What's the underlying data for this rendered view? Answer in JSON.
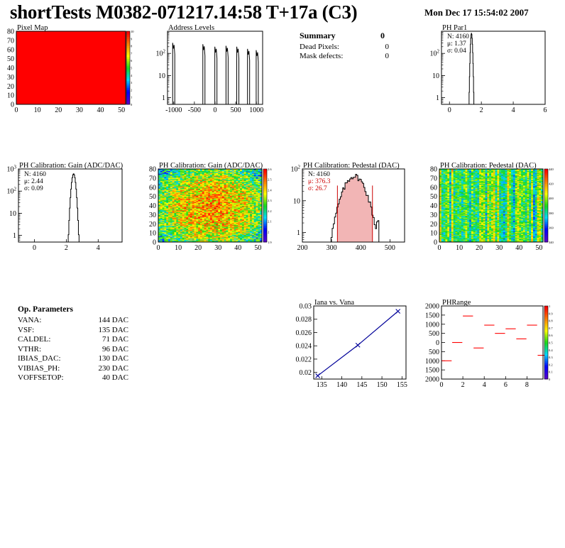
{
  "header": {
    "title": "shortTests M0382-071217.14:58 T+17a (C3)",
    "date": "Mon Dec 17 15:54:02 2007"
  },
  "summary": {
    "heading": "Summary",
    "heading_value": "0",
    "rows": [
      {
        "label": "Dead Pixels:",
        "value": "0"
      },
      {
        "label": "Mask defects:",
        "value": "0"
      }
    ]
  },
  "params": {
    "heading": "Op. Parameters",
    "rows": [
      {
        "name": "VANA:",
        "value": "144 DAC"
      },
      {
        "name": "VSF:",
        "value": "135 DAC"
      },
      {
        "name": "CALDEL:",
        "value": "71 DAC"
      },
      {
        "name": "VTHR:",
        "value": "96 DAC"
      },
      {
        "name": "IBIAS_DAC:",
        "value": "130 DAC"
      },
      {
        "name": "VIBIAS_PH:",
        "value": "230 DAC"
      },
      {
        "name": "VOFFSETOP:",
        "value": "40 DAC"
      }
    ]
  },
  "colors": {
    "red": "#ff0000",
    "navy": "#000099",
    "stats_red": "#cc0000"
  },
  "chart_data": [
    {
      "id": "pixel-map",
      "type": "heatmap",
      "title": "Pixel Map",
      "xlim": [
        0,
        52
      ],
      "ylim": [
        0,
        80
      ],
      "xticks": [
        0,
        10,
        20,
        30,
        40,
        50
      ],
      "yticks": [
        0,
        10,
        20,
        30,
        40,
        50,
        60,
        70,
        80
      ],
      "zlim": [
        0,
        10
      ],
      "zticks": [
        "0",
        "1",
        "2",
        "3",
        "4",
        "5",
        "6",
        "7",
        "8",
        "9",
        "10"
      ],
      "uniform_value": 10
    },
    {
      "id": "address-levels",
      "type": "line",
      "title": "Address Levels",
      "xlim": [
        -1150,
        1150
      ],
      "ylog": true,
      "ylim": [
        0.5,
        1000
      ],
      "xticks": [
        -1000,
        -500,
        0,
        500,
        1000
      ],
      "yticks": [
        1,
        10,
        100
      ],
      "ytick_labels": [
        "1",
        "10",
        "10^2"
      ],
      "peaks": [
        {
          "x": -1000,
          "y": 300
        },
        {
          "x": -270,
          "y": 260
        },
        {
          "x": 20,
          "y": 200
        },
        {
          "x": 290,
          "y": 220
        },
        {
          "x": 550,
          "y": 200
        },
        {
          "x": 810,
          "y": 160
        },
        {
          "x": 1020,
          "y": 140
        }
      ]
    },
    {
      "id": "ph-par1",
      "type": "line",
      "title": "PH Par1",
      "xlim": [
        -0.5,
        6
      ],
      "ylog": true,
      "ylim": [
        0.5,
        1000
      ],
      "xticks": [
        0,
        2,
        4,
        6
      ],
      "yticks": [
        1,
        10,
        100
      ],
      "ytick_labels": [
        "1",
        "10",
        "10^2"
      ],
      "stats": [
        "N: 4160",
        "μ: 1.37",
        "σ: 0.04"
      ],
      "mean": 1.37,
      "sigma": 0.04,
      "peak": 800
    },
    {
      "id": "ph-gain-hist",
      "type": "line",
      "title": "PH Calibration: Gain (ADC/DAC)",
      "xlim": [
        -1,
        5.5
      ],
      "ylog": true,
      "ylim": [
        0.5,
        1000
      ],
      "xticks": [
        0,
        2,
        4
      ],
      "yticks": [
        1,
        10,
        100,
        1000
      ],
      "ytick_labels": [
        "1",
        "10",
        "10^2",
        "10^3"
      ],
      "stats": [
        "N: 4160",
        "μ: 2.44",
        "σ: 0.09"
      ],
      "mean": 2.44,
      "sigma": 0.09,
      "peak": 600
    },
    {
      "id": "ph-gain-map",
      "type": "heatmap",
      "title": "PH Calibration: Gain (ADC/DAC)",
      "xlim": [
        0,
        52
      ],
      "ylim": [
        0,
        80
      ],
      "xticks": [
        0,
        10,
        20,
        30,
        40,
        50
      ],
      "yticks": [
        0,
        10,
        20,
        30,
        40,
        50,
        60,
        70,
        80
      ],
      "zticks": [
        "1.9",
        "2",
        "2.1",
        "2.2",
        "2.3",
        "2.4",
        "2.5",
        "2.6"
      ]
    },
    {
      "id": "ph-pedestal-hist",
      "type": "line",
      "title": "PH Calibration: Pedestal (DAC)",
      "xlim": [
        200,
        550
      ],
      "ylog": true,
      "ylim": [
        0.5,
        100
      ],
      "xticks": [
        200,
        300,
        400,
        500
      ],
      "yticks": [
        1,
        10,
        100
      ],
      "ytick_labels": [
        "1",
        "10",
        "10^2"
      ],
      "stats": [
        "N: 4160",
        "μ: 376.3",
        "σ: 26.7"
      ],
      "mean": 376.3,
      "sigma": 26.7,
      "peak": 60,
      "fit_range": [
        320,
        440
      ]
    },
    {
      "id": "ph-pedestal-map",
      "type": "heatmap",
      "title": "PH Calibration: Pedestal (DAC)",
      "xlim": [
        0,
        52
      ],
      "ylim": [
        0,
        80
      ],
      "xticks": [
        0,
        10,
        20,
        30,
        40,
        50
      ],
      "yticks": [
        0,
        10,
        20,
        30,
        40,
        50,
        60,
        70,
        80
      ],
      "zticks": [
        "340",
        "360",
        "380",
        "400",
        "420",
        "440"
      ]
    },
    {
      "id": "iana-vana",
      "type": "line",
      "title": "Iana vs. Vana",
      "xlim": [
        133,
        156
      ],
      "ylim": [
        0.019,
        0.03
      ],
      "xticks": [
        135,
        140,
        145,
        150,
        155
      ],
      "yticks": [
        0.02,
        0.022,
        0.024,
        0.026,
        0.028,
        0.03
      ],
      "ytick_labels": [
        "0.02",
        "0.022",
        "0.024",
        "0.026",
        "0.028",
        "0.03"
      ],
      "x": [
        134,
        144,
        154
      ],
      "y": [
        0.0195,
        0.0241,
        0.0292
      ]
    },
    {
      "id": "ph-range",
      "type": "scatter",
      "title": "PHRange",
      "xlim": [
        0,
        9.5
      ],
      "ylim": [
        -2000,
        2000
      ],
      "xticks": [
        0,
        2,
        4,
        6,
        8
      ],
      "yticks": [
        -2000,
        -1500,
        -1000,
        -500,
        0,
        500,
        1000,
        1500,
        2000
      ],
      "ytick_labels": [
        "2000",
        "1500",
        "1000",
        "500",
        "0",
        "500",
        "1000",
        "1500",
        "2000"
      ],
      "zticks": [
        "0",
        "0.1",
        "0.2",
        "0.3",
        "0.4",
        "0.5",
        "0.6",
        "0.7",
        "0.8",
        "0.9",
        "1"
      ],
      "x": [
        0,
        1,
        2,
        3,
        4,
        5,
        6,
        7,
        8,
        9
      ],
      "y": [
        -1000,
        0,
        1450,
        -300,
        950,
        500,
        750,
        200,
        950,
        -700
      ]
    }
  ]
}
